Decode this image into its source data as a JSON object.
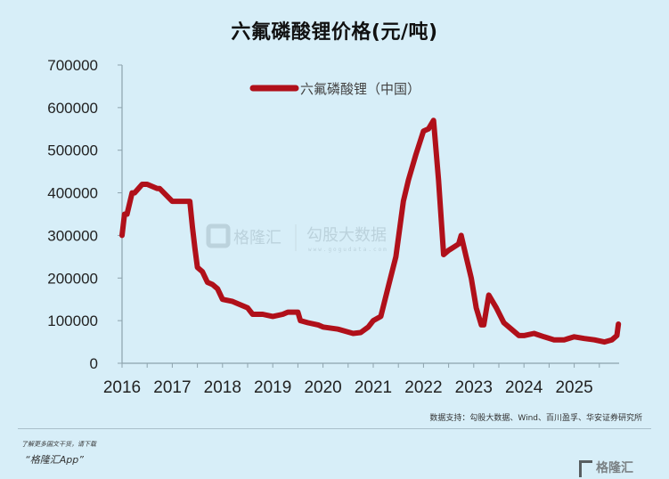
{
  "header": {
    "title": "六氟磷酸锂价格(元/吨)"
  },
  "legend": {
    "label": "六氟磷酸锂（中国）",
    "color": "#b0101a"
  },
  "watermark": {
    "brand": "格隆汇",
    "partner": "勾股大数据",
    "url": "www.gogudata.com"
  },
  "source": {
    "text": "数据支持：勾股大数据、Wind、百川盈孚、华安证券研究所"
  },
  "footer": {
    "promo": "了解更多国文干货，请下载",
    "app": "“格隆汇App”",
    "logo": "格隆汇"
  },
  "chart_data": {
    "type": "line",
    "title": "六氟磷酸锂价格(元/吨)",
    "xlabel": "",
    "ylabel": "",
    "ylim": [
      0,
      700000
    ],
    "xlim": [
      2016,
      2025.9
    ],
    "grid": false,
    "legend_position": "top-center",
    "yticks": [
      "0",
      "100000",
      "200000",
      "300000",
      "400000",
      "500000",
      "600000",
      "700000"
    ],
    "xticks": [
      "2016",
      "2017",
      "2018",
      "2019",
      "2020",
      "2021",
      "2022",
      "2023",
      "2024",
      "2025"
    ],
    "series": [
      {
        "name": "六氟磷酸锂（中国）",
        "color": "#b0101a",
        "x": [
          2016.0,
          2016.05,
          2016.1,
          2016.2,
          2016.25,
          2016.4,
          2016.5,
          2016.7,
          2016.75,
          2017.0,
          2017.1,
          2017.35,
          2017.4,
          2017.45,
          2017.5,
          2017.6,
          2017.7,
          2017.8,
          2017.9,
          2018.0,
          2018.2,
          2018.3,
          2018.5,
          2018.6,
          2018.8,
          2019.0,
          2019.2,
          2019.3,
          2019.5,
          2019.55,
          2019.7,
          2019.9,
          2020.0,
          2020.3,
          2020.45,
          2020.6,
          2020.75,
          2020.9,
          2021.0,
          2021.15,
          2021.3,
          2021.45,
          2021.6,
          2021.7,
          2021.85,
          2022.0,
          2022.1,
          2022.2,
          2022.3,
          2022.4,
          2022.5,
          2022.7,
          2022.75,
          2022.85,
          2022.95,
          2023.05,
          2023.15,
          2023.2,
          2023.3,
          2023.45,
          2023.6,
          2023.75,
          2023.9,
          2024.0,
          2024.2,
          2024.4,
          2024.6,
          2024.8,
          2025.0,
          2025.2,
          2025.4,
          2025.6,
          2025.75,
          2025.85,
          2025.88
        ],
        "values": [
          300000,
          350000,
          350000,
          400000,
          400000,
          420000,
          420000,
          410000,
          410000,
          380000,
          380000,
          380000,
          320000,
          270000,
          225000,
          215000,
          190000,
          185000,
          175000,
          150000,
          145000,
          140000,
          130000,
          115000,
          115000,
          110000,
          115000,
          120000,
          120000,
          100000,
          95000,
          90000,
          85000,
          80000,
          75000,
          70000,
          72000,
          85000,
          100000,
          110000,
          180000,
          250000,
          380000,
          430000,
          490000,
          545000,
          550000,
          570000,
          430000,
          255000,
          265000,
          280000,
          300000,
          250000,
          200000,
          130000,
          90000,
          90000,
          160000,
          130000,
          95000,
          80000,
          65000,
          65000,
          70000,
          62000,
          55000,
          55000,
          62000,
          58000,
          55000,
          50000,
          55000,
          65000,
          92000
        ]
      }
    ]
  }
}
